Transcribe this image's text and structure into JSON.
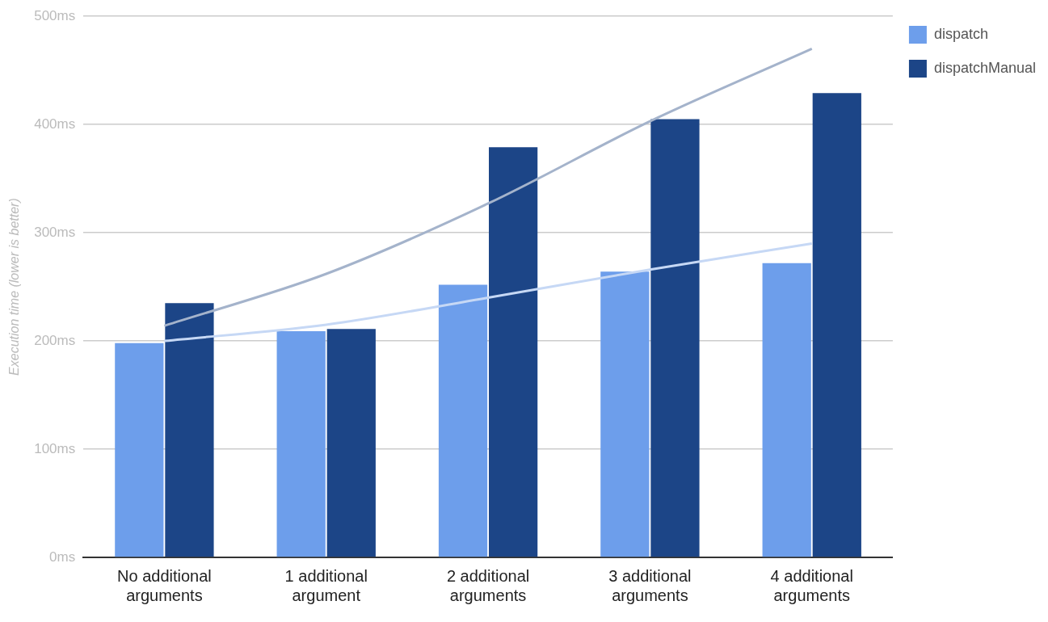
{
  "chart_data": {
    "type": "bar",
    "ylabel": "Execution time (lower is better)",
    "categories": [
      "No additional arguments",
      "1 additional argument",
      "2 additional arguments",
      "3 additional arguments",
      "4 additional arguments"
    ],
    "series": [
      {
        "name": "dispatch",
        "color": "#6d9eeb",
        "values": [
          198,
          209,
          252,
          264,
          272
        ]
      },
      {
        "name": "dispatchManual",
        "color": "#1c4587",
        "values": [
          235,
          211,
          379,
          405,
          429
        ]
      },
      {
        "type": "line",
        "color": "#c6d8f5",
        "values": [
          200,
          215,
          240,
          266,
          290
        ]
      },
      {
        "type": "line",
        "color": "#a4b3cb",
        "values": [
          214,
          262,
          327,
          403,
          470
        ]
      }
    ],
    "ylim": [
      0,
      500
    ],
    "yticks": [
      {
        "value": 0,
        "label": "0ms"
      },
      {
        "value": 100,
        "label": "100ms"
      },
      {
        "value": 200,
        "label": "200ms"
      },
      {
        "value": 300,
        "label": "300ms"
      },
      {
        "value": 400,
        "label": "400ms"
      },
      {
        "value": 500,
        "label": "500ms"
      }
    ],
    "grid": "y",
    "legend": "top right"
  }
}
